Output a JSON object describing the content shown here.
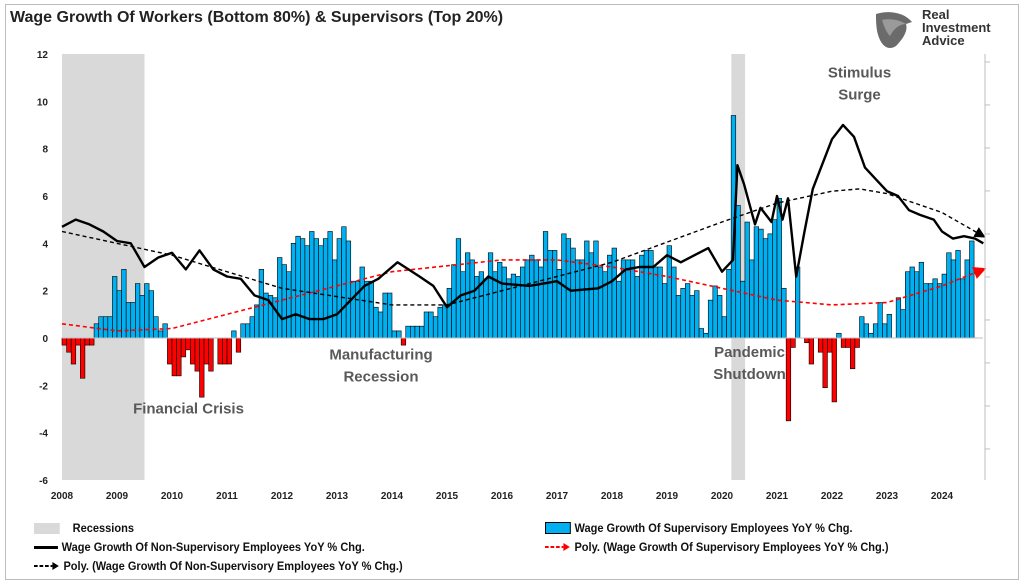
{
  "title": "Wage Growth Of Workers (Bottom 80%) & Supervisors (Top 20%)",
  "logo": {
    "line1": "Real",
    "line2": "Investment",
    "line3": "Advice"
  },
  "colors": {
    "positive_bar": "#00B0F0",
    "negative_bar": "#FF0000",
    "line": "#000000",
    "poly_red": "#FF0000",
    "recession": "#D9D9D9"
  },
  "chart_data": {
    "type": "bar+line",
    "ylim": [
      -6,
      12
    ],
    "yticks": [
      "12",
      "10",
      "8",
      "6",
      "4",
      "2",
      "0",
      "-2",
      "-4",
      "-6"
    ],
    "xticks": [
      "2008",
      "2009",
      "2010",
      "2011",
      "2012",
      "2013",
      "2014",
      "2015",
      "2016",
      "2017",
      "2018",
      "2019",
      "2020",
      "2021",
      "2022",
      "2023",
      "2024"
    ],
    "grid": false,
    "legend_position": "bottom",
    "recessions": [
      [
        2008.0,
        2009.5
      ],
      [
        2020.17,
        2020.42
      ]
    ],
    "annotations": [
      {
        "text": [
          "Financial Crisis"
        ],
        "year": 2010.3,
        "value": -3.2
      },
      {
        "text": [
          "Manufacturing",
          "Recession"
        ],
        "year": 2013.8,
        "value": -0.9
      },
      {
        "text": [
          "Pandemic",
          "Shutdown"
        ],
        "year": 2020.5,
        "value": -0.8
      },
      {
        "text": [
          "Stimulus",
          "Surge"
        ],
        "year": 2022.5,
        "value": 11
      }
    ],
    "supervisory_bars": {
      "name": "Wage Growth Of Supervisory Employees YoY % Chg.",
      "start": "2008-01",
      "frequency": "monthly",
      "values": [
        -0.3,
        -0.6,
        -1.1,
        -0.3,
        -1.7,
        -0.3,
        -0.3,
        0.6,
        0.9,
        0.9,
        0.9,
        2.6,
        2.0,
        2.9,
        1.5,
        1.5,
        2.3,
        1.8,
        2.3,
        2.0,
        0.9,
        0.3,
        0.6,
        -1.1,
        -1.6,
        -1.6,
        -0.8,
        -0.5,
        -1.1,
        -1.4,
        -2.5,
        -1.1,
        -1.4,
        0,
        -1.1,
        -1.1,
        -1.1,
        0.3,
        -0.6,
        0.6,
        0.6,
        0.9,
        1.4,
        2.9,
        1.9,
        1.8,
        1.7,
        3.4,
        3.1,
        2.8,
        4.0,
        4.3,
        4.2,
        3.9,
        4.5,
        4.2,
        3.9,
        4.2,
        4.5,
        3.3,
        4.2,
        4.7,
        4.1,
        2.4,
        2.4,
        3.0,
        2.4,
        2.4,
        1.3,
        1.1,
        1.9,
        1.9,
        0.3,
        0.3,
        -0.3,
        0.5,
        0.5,
        0.5,
        0.5,
        1.1,
        1.1,
        0.9,
        1.3,
        1.4,
        2.1,
        3.1,
        4.2,
        2.8,
        3.6,
        3.3,
        2.6,
        2.8,
        2.5,
        3.6,
        2.8,
        3.2,
        3.0,
        2.5,
        2.7,
        2.6,
        3.0,
        3.3,
        3.5,
        3.3,
        3.0,
        4.5,
        3.7,
        3.7,
        2.9,
        4.4,
        4.2,
        3.8,
        3.3,
        3.3,
        4.1,
        3.6,
        4.1,
        3.0,
        2.8,
        3.5,
        3.8,
        2.4,
        3.3,
        3.3,
        3.3,
        2.6,
        3.5,
        3.7,
        3.7,
        3.0,
        3.0,
        2.3,
        3.9,
        3.0,
        1.8,
        2.1,
        2.3,
        1.8,
        2.0,
        0.4,
        0.2,
        1.6,
        2.2,
        1.8,
        0.9,
        2.9,
        9.4,
        5.6,
        2.4,
        4.9,
        3.3,
        4.7,
        4.6,
        4.2,
        4.4,
        5.0,
        5.9,
        2.1,
        -3.5,
        -0.4,
        3.0,
        0,
        -0.2,
        -1.1,
        0,
        -0.6,
        -2.1,
        -0.6,
        -2.7,
        0.2,
        -0.4,
        -0.4,
        -1.3,
        -0.4,
        0.9,
        0.6,
        0.2,
        0.6,
        1.5,
        0.6,
        1.0,
        0,
        1.7,
        1.2,
        2.8,
        3.0,
        2.8,
        3.2,
        2.3,
        2.3,
        2.5,
        2.3,
        2.7,
        3.6,
        3.3,
        3.7,
        2.5,
        3.3,
        4.1
      ]
    },
    "nonsupervisory_line": {
      "name": "Wage Growth Of Non-Supervisory Employees YoY % Chg.",
      "points": [
        [
          2008.0,
          4.7
        ],
        [
          2008.25,
          5.0
        ],
        [
          2008.5,
          4.8
        ],
        [
          2008.75,
          4.5
        ],
        [
          2009.0,
          4.1
        ],
        [
          2009.25,
          4.0
        ],
        [
          2009.5,
          3.0
        ],
        [
          2009.75,
          3.4
        ],
        [
          2010.0,
          3.6
        ],
        [
          2010.25,
          2.9
        ],
        [
          2010.5,
          3.7
        ],
        [
          2010.75,
          2.9
        ],
        [
          2011.0,
          2.6
        ],
        [
          2011.25,
          2.5
        ],
        [
          2011.5,
          1.8
        ],
        [
          2011.75,
          1.6
        ],
        [
          2012.0,
          0.8
        ],
        [
          2012.25,
          1.0
        ],
        [
          2012.5,
          0.8
        ],
        [
          2012.75,
          0.8
        ],
        [
          2013.0,
          1.0
        ],
        [
          2013.25,
          1.6
        ],
        [
          2013.5,
          2.2
        ],
        [
          2013.75,
          2.5
        ],
        [
          2014.1,
          3.2
        ],
        [
          2014.5,
          2.6
        ],
        [
          2014.75,
          2.2
        ],
        [
          2015.0,
          1.3
        ],
        [
          2015.25,
          1.8
        ],
        [
          2015.5,
          2.0
        ],
        [
          2015.75,
          2.6
        ],
        [
          2016.0,
          2.3
        ],
        [
          2016.5,
          2.2
        ],
        [
          2017.0,
          2.4
        ],
        [
          2017.25,
          2.0
        ],
        [
          2017.75,
          2.1
        ],
        [
          2018.0,
          2.4
        ],
        [
          2018.25,
          2.9
        ],
        [
          2018.5,
          3.0
        ],
        [
          2018.75,
          3.0
        ],
        [
          2019.0,
          3.5
        ],
        [
          2019.25,
          3.2
        ],
        [
          2019.5,
          3.5
        ],
        [
          2019.75,
          3.8
        ],
        [
          2020.0,
          2.8
        ],
        [
          2020.2,
          3.3
        ],
        [
          2020.28,
          7.3
        ],
        [
          2020.4,
          6.5
        ],
        [
          2020.6,
          4.8
        ],
        [
          2020.7,
          5.5
        ],
        [
          2020.9,
          4.9
        ],
        [
          2021.0,
          6.0
        ],
        [
          2021.1,
          5.0
        ],
        [
          2021.2,
          5.9
        ],
        [
          2021.35,
          2.6
        ],
        [
          2021.5,
          4.5
        ],
        [
          2021.65,
          6.3
        ],
        [
          2021.8,
          7.2
        ],
        [
          2022.0,
          8.4
        ],
        [
          2022.2,
          9.0
        ],
        [
          2022.4,
          8.5
        ],
        [
          2022.6,
          7.2
        ],
        [
          2022.8,
          6.7
        ],
        [
          2023.0,
          6.2
        ],
        [
          2023.2,
          6.0
        ],
        [
          2023.4,
          5.4
        ],
        [
          2023.6,
          5.2
        ],
        [
          2023.85,
          5.0
        ],
        [
          2024.0,
          4.5
        ],
        [
          2024.2,
          4.2
        ],
        [
          2024.4,
          4.3
        ],
        [
          2024.6,
          4.2
        ],
        [
          2024.75,
          4.0
        ]
      ]
    },
    "poly_supervisory": {
      "name": "Poly. (Wage Growth Of Supervisory Employees YoY % Chg.)",
      "points": [
        [
          2008,
          0.6
        ],
        [
          2009,
          0.3
        ],
        [
          2010,
          0.4
        ],
        [
          2012,
          1.6
        ],
        [
          2014,
          2.8
        ],
        [
          2016,
          3.3
        ],
        [
          2017,
          3.3
        ],
        [
          2018,
          3.0
        ],
        [
          2019,
          2.6
        ],
        [
          2020,
          2.1
        ],
        [
          2021,
          1.6
        ],
        [
          2022,
          1.4
        ],
        [
          2023,
          1.5
        ],
        [
          2024,
          2.2
        ],
        [
          2024.75,
          2.9
        ]
      ]
    },
    "poly_nonsupervisory": {
      "name": "Poly. (Wage Growth Of Non-Supervisory Employees YoY % Chg.)",
      "points": [
        [
          2008,
          4.5
        ],
        [
          2010,
          3.5
        ],
        [
          2012,
          2.1
        ],
        [
          2014,
          1.4
        ],
        [
          2015,
          1.4
        ],
        [
          2016,
          2.0
        ],
        [
          2018,
          3.2
        ],
        [
          2020,
          4.9
        ],
        [
          2021,
          5.7
        ],
        [
          2022,
          6.2
        ],
        [
          2022.5,
          6.3
        ],
        [
          2023,
          6.1
        ],
        [
          2024,
          5.3
        ],
        [
          2024.75,
          4.3
        ]
      ]
    },
    "legend": {
      "recessions": "Recessions",
      "supervisory": "Wage Growth Of Supervisory Employees YoY % Chg.",
      "nonsupervisory": "Wage Growth Of Non-Supervisory Employees YoY % Chg.",
      "poly_supervisory": "Poly. (Wage Growth Of Supervisory Employees YoY % Chg.)",
      "poly_nonsupervisory": "Poly. (Wage Growth Of Non-Supervisory Employees YoY % Chg.)"
    }
  }
}
